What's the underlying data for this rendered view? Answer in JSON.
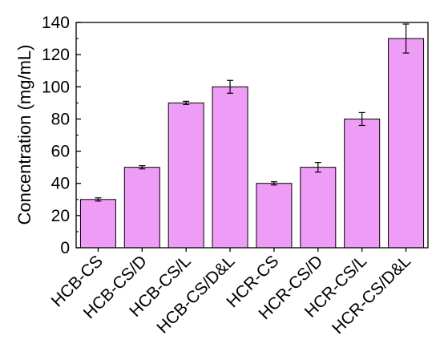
{
  "chart_data": {
    "type": "bar",
    "title": "",
    "xlabel": "",
    "ylabel": "Concentration (mg/mL)",
    "ylim": [
      0,
      140
    ],
    "yticks": [
      0,
      20,
      40,
      60,
      80,
      100,
      120,
      140
    ],
    "grid": false,
    "categories": [
      "HCB-CS",
      "HCB-CS/D",
      "HCB-CS/L",
      "HCB-CS/D&L",
      "HCR-CS",
      "HCR-CS/D",
      "HCR-CS/L",
      "HCR-CS/D&L"
    ],
    "values": [
      30,
      50,
      90,
      100,
      40,
      50,
      80,
      130
    ],
    "errors": [
      1,
      1,
      1,
      4,
      1,
      3,
      4,
      9
    ],
    "bar_color": "#ee9cf5",
    "edge_color": "#000000"
  }
}
